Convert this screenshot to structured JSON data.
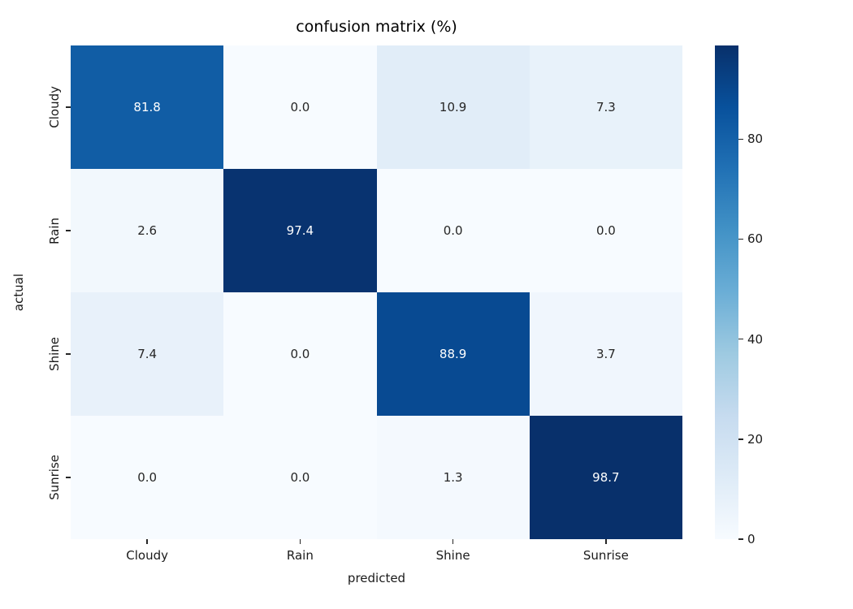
{
  "chart_data": {
    "type": "heatmap",
    "title": "confusion matrix (%)",
    "xlabel": "predicted",
    "ylabel": "actual",
    "x_categories": [
      "Cloudy",
      "Rain",
      "Shine",
      "Sunrise"
    ],
    "y_categories": [
      "Cloudy",
      "Rain",
      "Shine",
      "Sunrise"
    ],
    "values": [
      [
        81.8,
        0.0,
        10.9,
        7.3
      ],
      [
        2.6,
        97.4,
        0.0,
        0.0
      ],
      [
        7.4,
        0.0,
        88.9,
        3.7
      ],
      [
        0.0,
        0.0,
        1.3,
        98.7
      ]
    ],
    "value_format": "{:.1f}",
    "vmin": 0,
    "vmax": 98.7,
    "colormap": "Blues",
    "colormap_stops": [
      "#f7fbff",
      "#deebf7",
      "#c6dbef",
      "#9ecae1",
      "#6baed6",
      "#4292c6",
      "#2171b5",
      "#08519c",
      "#08306b"
    ],
    "colorbar": {
      "position": "right",
      "ticks": [
        0,
        20,
        40,
        60,
        80
      ]
    },
    "grid": false,
    "annotation_text_dark": "#262626",
    "annotation_text_light": "#ffffff"
  }
}
